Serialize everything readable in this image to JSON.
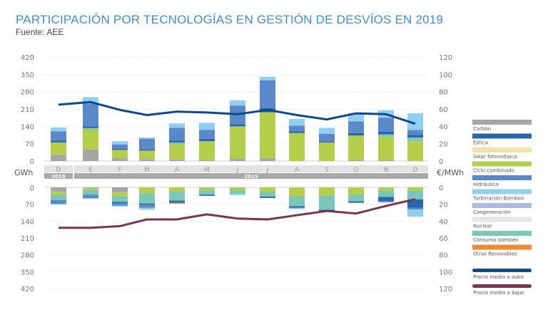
{
  "title": "PARTICIPACIÓN POR TECNOLOGÍAS EN GESTIÓN DE DESVÍOS EN 2019",
  "source": "Fuente: AEE",
  "chart_data": {
    "type": "bar",
    "stacked": true,
    "left_axis_label": "GWh",
    "right_axis_label": "€/MWh",
    "left_ticks": [
      0,
      70,
      140,
      210,
      280,
      350,
      420
    ],
    "right_ticks": [
      0,
      20,
      40,
      60,
      80,
      100,
      120
    ],
    "ylim_gwh": [
      0,
      420
    ],
    "ylim_price": [
      0,
      120
    ],
    "grid": true,
    "legend_placement": "right",
    "categories": [
      "D",
      "E",
      "F",
      "M",
      "A",
      "M",
      "J",
      "J",
      "A",
      "S",
      "O",
      "N",
      "D"
    ],
    "years": [
      {
        "label": "2018",
        "span": 1
      },
      {
        "label": "2019",
        "span": 12
      }
    ],
    "legend": [
      {
        "name": "Carbón",
        "color": "#a6a6a6"
      },
      {
        "name": "Eólica",
        "color": "#2a66b0"
      },
      {
        "name": "Solar fotovoltaica",
        "color": "#f6e1a6"
      },
      {
        "name": "Ciclo combinado",
        "color": "#b3cf4a"
      },
      {
        "name": "Hidráulica",
        "color": "#5b88c8"
      },
      {
        "name": "Turbinación Bombeo",
        "color": "#8fd0f2"
      },
      {
        "name": "Congeneración",
        "color": "#aabbe0"
      },
      {
        "name": "Nuclear",
        "color": "#e6e6e6"
      },
      {
        "name": "Consumo bombeo",
        "color": "#7cc6b8"
      },
      {
        "name": "Otras Renovables",
        "color": "#ee8a36"
      }
    ],
    "lines_legend": [
      {
        "name": "Precio medio a subir",
        "color": "#0d4a8c"
      },
      {
        "name": "Precio medio a bajar",
        "color": "#7a3450"
      }
    ],
    "up_series": [
      {
        "name": "Carbón",
        "values": [
          25,
          47,
          12,
          8,
          6,
          3,
          10,
          12,
          0,
          0,
          3,
          3,
          0
        ]
      },
      {
        "name": "Ciclo combinado",
        "values": [
          50,
          81,
          33,
          34,
          62,
          77,
          130,
          185,
          113,
          75,
          100,
          95,
          80
        ]
      },
      {
        "name": "Consumo bombeo",
        "values": [
          0,
          5,
          0,
          0,
          7,
          0,
          0,
          0,
          0,
          0,
          0,
          10,
          15
        ]
      },
      {
        "name": "Eólica",
        "values": [
          8,
          7,
          5,
          5,
          7,
          10,
          8,
          17,
          7,
          5,
          10,
          10,
          10
        ]
      },
      {
        "name": "Hidráulica",
        "values": [
          37,
          92,
          17,
          43,
          52,
          36,
          76,
          112,
          23,
          30,
          47,
          57,
          20
        ]
      },
      {
        "name": "Turbinación Bombeo",
        "values": [
          15,
          26,
          13,
          5,
          18,
          28,
          21,
          14,
          27,
          24,
          32,
          30,
          68
        ]
      }
    ],
    "down_series": [
      {
        "name": "Carbón",
        "values": [
          18,
          3,
          20,
          0,
          0,
          0,
          0,
          0,
          0,
          0,
          0,
          0,
          0
        ]
      },
      {
        "name": "Ciclo combinado",
        "values": [
          12,
          7,
          16,
          24,
          18,
          12,
          12,
          18,
          37,
          33,
          29,
          13,
          13
        ]
      },
      {
        "name": "Consumo bombeo",
        "values": [
          23,
          20,
          24,
          43,
          37,
          18,
          15,
          20,
          41,
          60,
          29,
          27,
          37
        ]
      },
      {
        "name": "Eólica",
        "values": [
          0,
          0,
          5,
          5,
          7,
          5,
          0,
          6,
          7,
          7,
          6,
          17,
          35
        ]
      },
      {
        "name": "Hidráulica",
        "values": [
          15,
          15,
          11,
          13,
          3,
          0,
          0,
          0,
          0,
          0,
          0,
          5,
          7
        ]
      },
      {
        "name": "Otras Renovables",
        "values": [
          0,
          0,
          0,
          0,
          3,
          0,
          0,
          0,
          0,
          0,
          0,
          0,
          0
        ]
      },
      {
        "name": "Turbinación Bombeo",
        "values": [
          4,
          3,
          4,
          8,
          0,
          0,
          5,
          0,
          5,
          0,
          0,
          0,
          30
        ]
      }
    ],
    "price_up": [
      65,
      68,
      59,
      53,
      57,
      56,
      54,
      59,
      53,
      48,
      55,
      54,
      43
    ],
    "price_down": [
      48,
      48,
      46,
      38,
      38,
      32,
      37,
      38,
      33,
      28,
      31,
      22,
      14
    ]
  }
}
